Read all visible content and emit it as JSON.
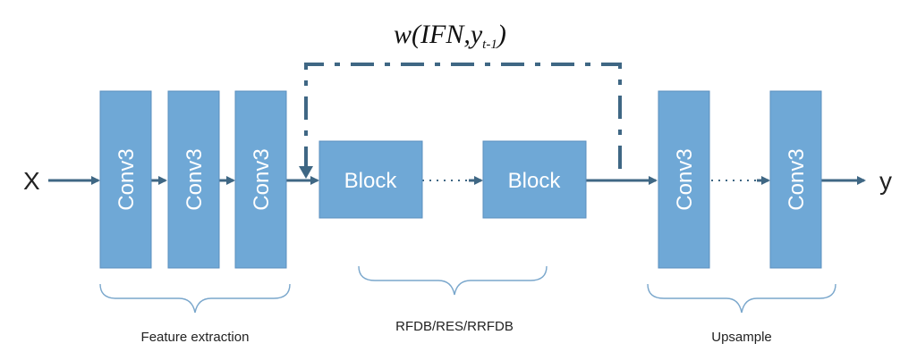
{
  "formula": {
    "prefix": "w(IFN,",
    "var": "y",
    "sub": "t-1",
    "suffix": ")"
  },
  "input_label": "X",
  "output_label": "y",
  "boxes": {
    "fe1": "Conv3",
    "fe2": "Conv3",
    "fe3": "Conv3",
    "block1": "Block",
    "block2": "Block",
    "up1": "Conv3",
    "up2": "Conv3"
  },
  "groups": {
    "feature": "Feature extraction",
    "blocks": "RFDB/RES/RRFDB",
    "upsample": "Upsample"
  },
  "colors": {
    "box": "#6fa8d6",
    "arrow": "#3f6784",
    "brace": "#7aa7cc"
  }
}
